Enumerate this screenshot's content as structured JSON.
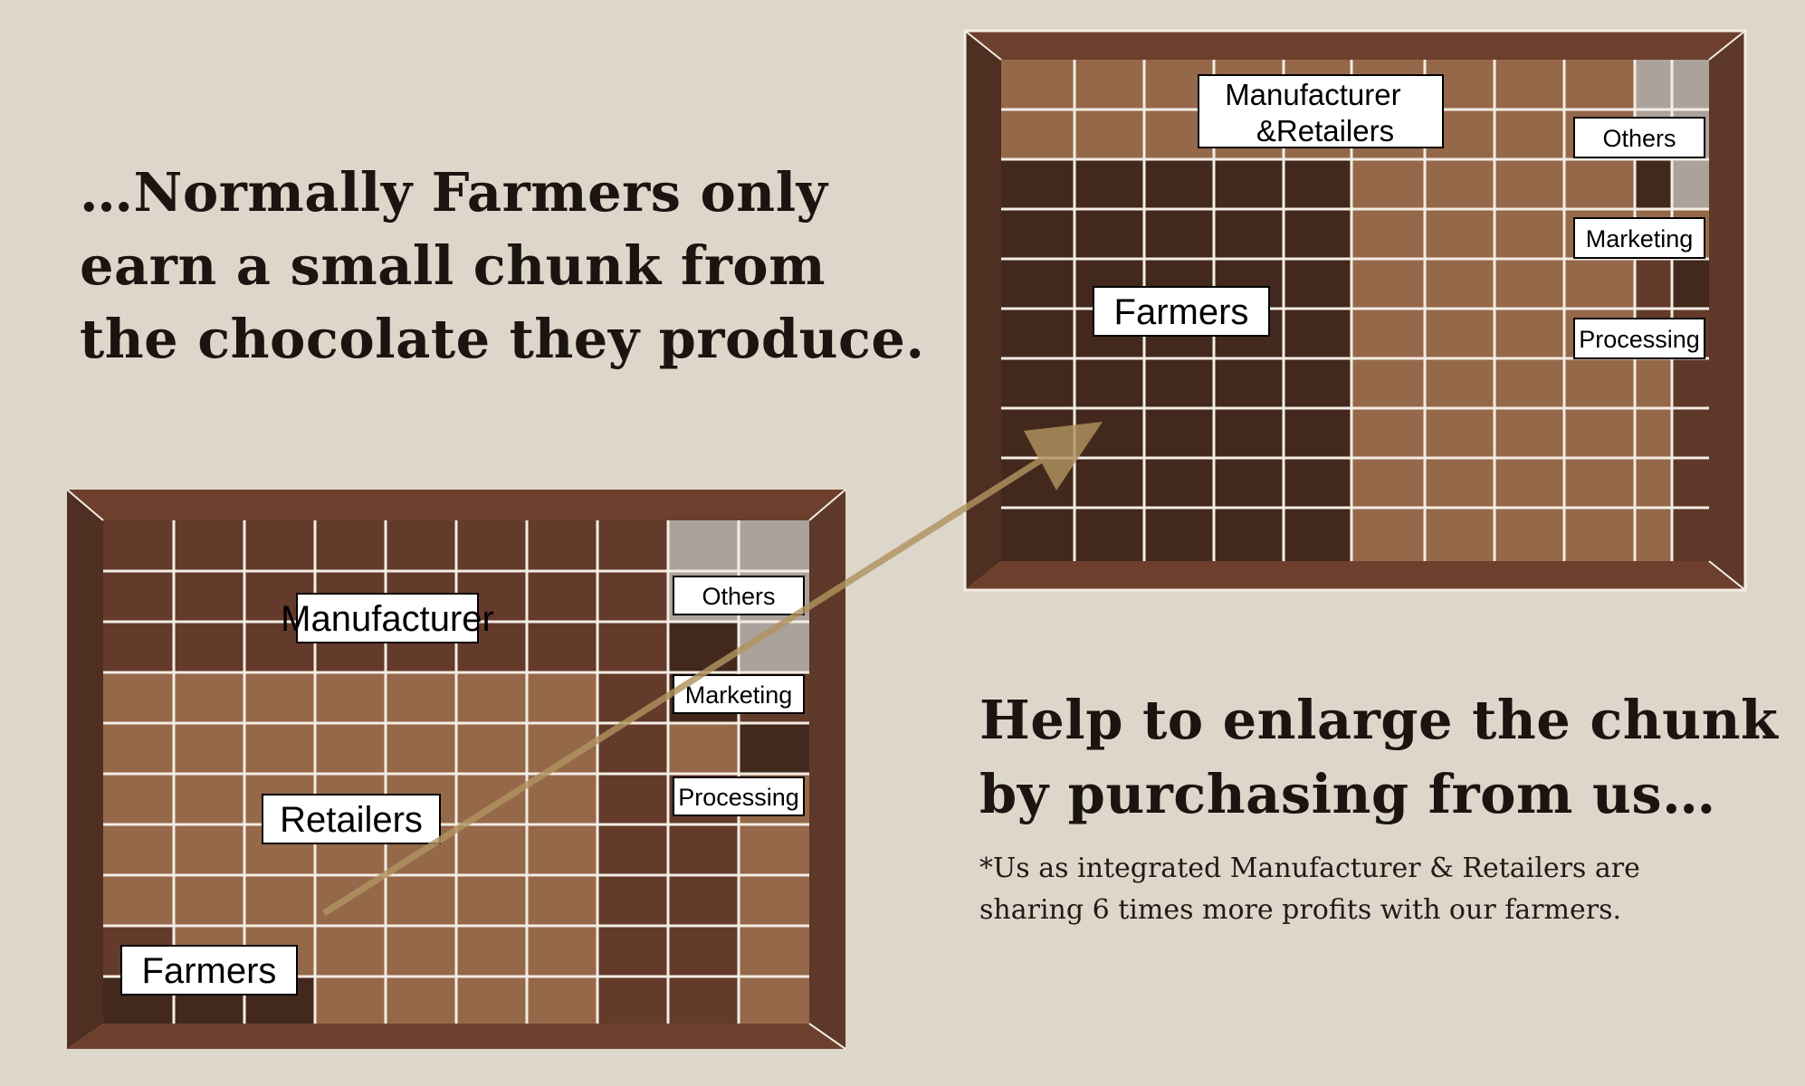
{
  "intro_text": "…Normally Farmers only\nearn a small chunk from\nthe chocolate they produce.",
  "cta_text": "Help to enlarge the chunk\nby purchasing from us…",
  "footnote_text": "*Us as integrated Manufacturer & Retailers are\nsharing 6 times more profits with our farmers.",
  "colors": {
    "background": "#ddd6ca",
    "farmers": "#43291d",
    "manufacturer": "#643a2b",
    "retailers": "#95684a",
    "marketing": "#43291d",
    "processing": "#643a2b",
    "others": "#aca29c",
    "frame_dark": "#4e2f21",
    "frame_mid": "#6d402e",
    "frame_light": "#5e3828",
    "grid_line": "#f3ede4",
    "arrow": "#b0925f"
  },
  "boards": {
    "before": {
      "cols": 10,
      "rows": 10,
      "segments": [
        {
          "key": "farmers",
          "label": "Farmers",
          "cells": 6
        },
        {
          "key": "retailers",
          "label": "Retailers",
          "cells": 31
        },
        {
          "key": "manufacturer",
          "label": "Manufacturer",
          "cells": 42
        },
        {
          "key": "processing",
          "label": "Processing",
          "cells": 13
        },
        {
          "key": "marketing",
          "label": "Marketing",
          "cells": 3
        },
        {
          "key": "others",
          "label": "Others",
          "cells": 5
        }
      ]
    },
    "after": {
      "cols": 10,
      "rows": 10,
      "segments": [
        {
          "key": "farmers",
          "label": "Farmers",
          "cells": 40
        },
        {
          "key": "manufacturer",
          "label": "Manufacturer\n&Retailers",
          "cells": 45
        },
        {
          "key": "processing",
          "label": "Processing",
          "cells": 8
        },
        {
          "key": "marketing",
          "label": "Marketing",
          "cells": 2
        },
        {
          "key": "others",
          "label": "Others",
          "cells": 5
        }
      ]
    }
  }
}
